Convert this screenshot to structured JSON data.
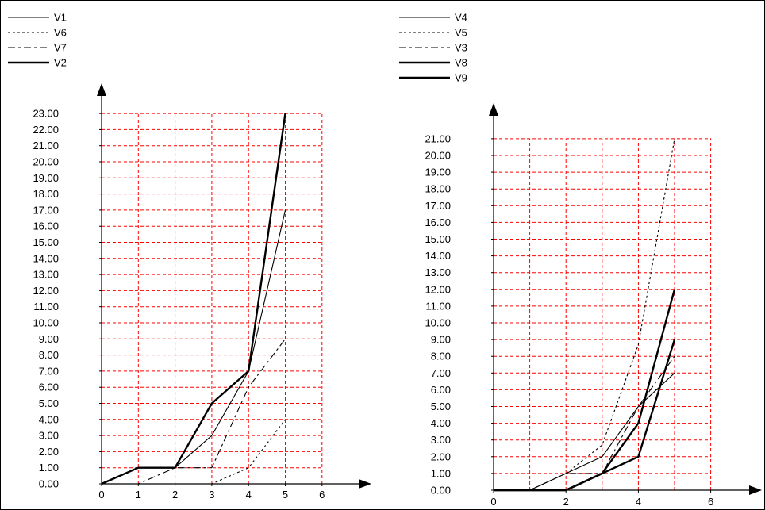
{
  "chart_data": [
    {
      "type": "line",
      "title": "",
      "xlabel": "",
      "ylabel": "",
      "xlim": [
        0,
        6
      ],
      "ylim": [
        0,
        23
      ],
      "x_ticks": [
        "0",
        "1",
        "2",
        "3",
        "4",
        "5",
        "6"
      ],
      "y_ticks": [
        "0.00",
        "1.00",
        "2.00",
        "3.00",
        "4.00",
        "5.00",
        "6.00",
        "7.00",
        "8.00",
        "9.00",
        "10.00",
        "11.00",
        "12.00",
        "13.00",
        "14.00",
        "15.00",
        "16.00",
        "17.00",
        "18.00",
        "19.00",
        "20.00",
        "21.00",
        "22.00",
        "23.00"
      ],
      "grid": true,
      "grid_color": "#ff0000",
      "legend_position": "top-left",
      "series": [
        {
          "name": "V1",
          "style": "solid",
          "weight": "thin",
          "x": [
            0,
            1,
            2,
            3,
            4,
            5
          ],
          "y": [
            0,
            1,
            1,
            3,
            7,
            17
          ]
        },
        {
          "name": "V6",
          "style": "dotted",
          "weight": "thin",
          "x": [
            0,
            1,
            2,
            3,
            4,
            5
          ],
          "y": [
            0,
            0,
            0,
            0,
            1,
            4
          ]
        },
        {
          "name": "V7",
          "style": "dashdot",
          "weight": "thin",
          "x": [
            0,
            1,
            2,
            3,
            4,
            5
          ],
          "y": [
            0,
            0,
            1,
            1,
            6,
            9
          ]
        },
        {
          "name": "V2",
          "style": "solid",
          "weight": "thick",
          "x": [
            0,
            1,
            2,
            3,
            4,
            5
          ],
          "y": [
            0,
            1,
            1,
            5,
            7,
            23
          ]
        }
      ]
    },
    {
      "type": "line",
      "title": "",
      "xlabel": "",
      "ylabel": "",
      "xlim": [
        0,
        6
      ],
      "ylim": [
        0,
        21
      ],
      "x_ticks": [
        "0",
        "2",
        "4",
        "6"
      ],
      "y_ticks": [
        "0.00",
        "1.00",
        "2.00",
        "3.00",
        "4.00",
        "5.00",
        "6.00",
        "7.00",
        "8.00",
        "9.00",
        "10.00",
        "11.00",
        "12.00",
        "13.00",
        "14.00",
        "15.00",
        "16.00",
        "17.00",
        "18.00",
        "19.00",
        "20.00",
        "21.00"
      ],
      "grid": true,
      "grid_color": "#ff0000",
      "legend_position": "top-left",
      "series": [
        {
          "name": "V4",
          "style": "solid",
          "weight": "thin",
          "x": [
            0,
            1,
            2,
            3,
            4,
            5
          ],
          "y": [
            0,
            0,
            1,
            2,
            5,
            7
          ]
        },
        {
          "name": "V5",
          "style": "dotted",
          "weight": "thin",
          "x": [
            0,
            1,
            2,
            3,
            4,
            5
          ],
          "y": [
            0,
            0,
            1,
            2.7,
            8.7,
            21
          ]
        },
        {
          "name": "V3",
          "style": "dashdot",
          "weight": "thin",
          "x": [
            0,
            1,
            2,
            3,
            4,
            5
          ],
          "y": [
            0,
            0,
            1,
            1,
            5,
            8
          ]
        },
        {
          "name": "V8",
          "style": "solid",
          "weight": "thick",
          "x": [
            0,
            1,
            2,
            3,
            4,
            5
          ],
          "y": [
            0,
            0,
            0,
            1,
            4,
            12
          ]
        },
        {
          "name": "V9",
          "style": "solid",
          "weight": "thick",
          "x": [
            0,
            1,
            2,
            3,
            4,
            5
          ],
          "y": [
            0,
            0,
            0,
            1,
            2,
            9
          ]
        }
      ]
    }
  ]
}
